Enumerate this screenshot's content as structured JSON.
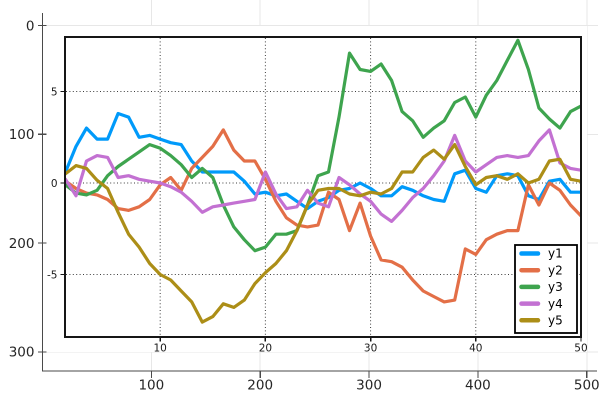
{
  "figure": {
    "background": "#ffffff",
    "outer_axes": {
      "description": "outer pixel-coordinate frame around embedded plot image",
      "x_ticks": [
        100,
        200,
        300,
        400,
        500
      ],
      "x_tick_labels": [
        "100",
        "200",
        "300",
        "400",
        "500"
      ],
      "y_ticks": [
        0,
        100,
        200,
        300
      ],
      "y_tick_labels": [
        "0",
        "100",
        "200",
        "300"
      ],
      "axis_color": "#4a4a4a",
      "grid_color": "#e7e7e7",
      "label_color": "#262626"
    }
  },
  "chart_data": {
    "type": "line",
    "title": "",
    "xlabel": "",
    "ylabel": "",
    "xlim": [
      1,
      50
    ],
    "ylim": [
      -8.4,
      8.0
    ],
    "x_start": 1,
    "x_step": 1,
    "x_ticks": [
      10,
      20,
      30,
      40,
      50
    ],
    "x_tick_labels": [
      "10",
      "20",
      "30",
      "40",
      "50"
    ],
    "y_ticks": [
      5,
      0,
      -5
    ],
    "y_tick_labels": [
      "5",
      "0",
      "-5"
    ],
    "grid": "dotted",
    "grid_color": "#3d3d3d",
    "border_color": "#161616",
    "legend": {
      "position": "bottom-right",
      "border_color": "#000000",
      "background": "#ffffff"
    },
    "series": [
      {
        "name": "y1",
        "color": "#009AFA",
        "values": [
          0.6,
          2.0,
          3.0,
          2.4,
          2.4,
          3.8,
          3.6,
          2.5,
          2.6,
          2.4,
          2.2,
          2.1,
          1.2,
          0.6,
          0.6,
          0.6,
          0.6,
          0.1,
          -0.6,
          -0.5,
          -0.7,
          -0.6,
          -1.0,
          -1.4,
          -1.0,
          -0.8,
          -0.4,
          -0.3,
          0.0,
          -0.3,
          -0.7,
          -0.7,
          -0.2,
          -0.4,
          -0.7,
          -0.9,
          -1.0,
          0.5,
          0.7,
          -0.3,
          -0.5,
          0.4,
          0.5,
          0.4,
          -0.7,
          -0.9,
          0.1,
          0.2,
          -0.5,
          -0.5
        ]
      },
      {
        "name": "y2",
        "color": "#E36F47",
        "values": [
          0.1,
          -0.3,
          -0.55,
          -0.65,
          -0.9,
          -1.4,
          -1.5,
          -1.3,
          -0.9,
          -0.1,
          0.3,
          -0.4,
          0.8,
          1.4,
          2.0,
          2.9,
          1.8,
          1.2,
          1.2,
          0.2,
          -1.0,
          -1.9,
          -2.3,
          -2.4,
          -2.3,
          -0.5,
          -0.9,
          -2.6,
          -1.1,
          -2.9,
          -4.2,
          -4.3,
          -4.6,
          -5.3,
          -5.9,
          -6.2,
          -6.5,
          -6.4,
          -3.6,
          -3.9,
          -3.1,
          -2.8,
          -2.6,
          -2.6,
          -0.1,
          -1.2,
          0.0,
          -0.4,
          -1.2,
          -1.8
        ]
      },
      {
        "name": "y3",
        "color": "#3EA44E",
        "values": [
          -0.1,
          -0.55,
          -0.65,
          -0.4,
          0.4,
          0.9,
          1.3,
          1.7,
          2.1,
          1.9,
          1.5,
          1.0,
          0.3,
          0.8,
          0.3,
          -1.2,
          -2.4,
          -3.1,
          -3.7,
          -3.5,
          -2.8,
          -2.8,
          -2.6,
          -1.2,
          0.4,
          0.6,
          3.6,
          7.1,
          6.2,
          6.1,
          6.5,
          5.6,
          3.9,
          3.4,
          2.5,
          3.0,
          3.4,
          4.4,
          4.7,
          3.6,
          4.8,
          5.6,
          6.7,
          7.8,
          6.2,
          4.1,
          3.5,
          3.0,
          3.9,
          4.2
        ]
      },
      {
        "name": "y4",
        "color": "#C371D2",
        "values": [
          0.2,
          -0.7,
          1.2,
          1.5,
          1.4,
          0.3,
          0.4,
          0.2,
          0.1,
          0.0,
          -0.2,
          -0.5,
          -1.0,
          -1.6,
          -1.3,
          -1.2,
          -1.1,
          -1.0,
          -0.9,
          0.6,
          -0.6,
          -1.4,
          -1.3,
          -0.4,
          -1.1,
          -1.3,
          0.3,
          -0.1,
          -0.6,
          -1.0,
          -1.7,
          -2.1,
          -1.5,
          -0.8,
          -0.3,
          0.4,
          1.2,
          2.6,
          1.2,
          0.6,
          1.0,
          1.4,
          1.5,
          1.4,
          1.5,
          2.3,
          2.9,
          1.1,
          0.8,
          0.7
        ]
      },
      {
        "name": "y5",
        "color": "#AC8E17",
        "values": [
          0.5,
          0.95,
          0.8,
          0.15,
          -0.3,
          -1.6,
          -2.8,
          -3.5,
          -4.4,
          -5.0,
          -5.3,
          -5.9,
          -6.5,
          -7.6,
          -7.3,
          -6.6,
          -6.8,
          -6.4,
          -5.5,
          -4.9,
          -4.4,
          -3.7,
          -2.6,
          -1.2,
          -0.4,
          -0.3,
          -0.3,
          -0.6,
          -0.7,
          -0.5,
          -0.6,
          -0.3,
          0.6,
          0.6,
          1.4,
          1.8,
          1.3,
          2.1,
          0.9,
          -0.1,
          0.3,
          0.4,
          0.2,
          0.5,
          0.0,
          0.2,
          1.2,
          1.3,
          0.2,
          0.1
        ]
      }
    ]
  }
}
